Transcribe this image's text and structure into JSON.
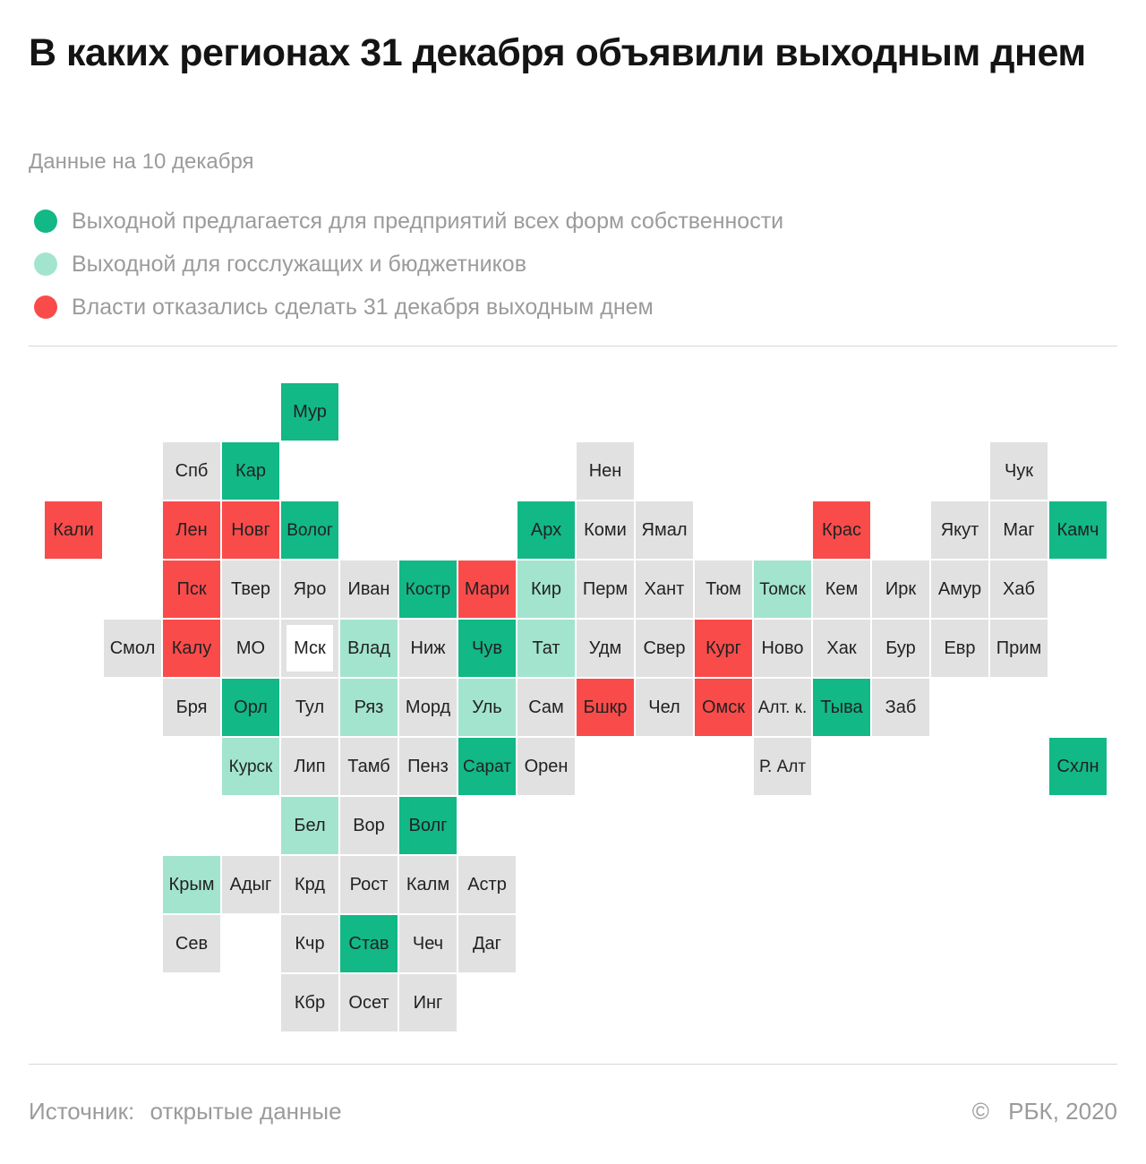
{
  "title": "В каких регионах 31 декабря объявили выходным днем",
  "subtitle": "Данные на 10 декабря",
  "colors": {
    "all_forms": "#12b886",
    "public_sector": "#a3e4cf",
    "refused": "#fa4b4b",
    "no_data": "#e1e1e1",
    "capital_border": "#e1e1e1"
  },
  "legend": [
    {
      "status": "all_forms",
      "label": "Выходной предлагается для предприятий всех форм собственности"
    },
    {
      "status": "public_sector",
      "label": "Выходной для госслужащих и бюджетников"
    },
    {
      "status": "refused",
      "label": "Власти отказались сделать 31 декабря выходным днем"
    }
  ],
  "regions": [
    {
      "label": "Мур",
      "status": "all_forms"
    },
    {
      "label": "Спб",
      "status": "no_data"
    },
    {
      "label": "Кар",
      "status": "all_forms"
    },
    {
      "label": "Нен",
      "status": "no_data"
    },
    {
      "label": "Чук",
      "status": "no_data"
    },
    {
      "label": "Кали",
      "status": "refused"
    },
    {
      "label": "Лен",
      "status": "refused"
    },
    {
      "label": "Новг",
      "status": "refused"
    },
    {
      "label": "Волог",
      "status": "all_forms"
    },
    {
      "label": "Арх",
      "status": "all_forms"
    },
    {
      "label": "Коми",
      "status": "no_data"
    },
    {
      "label": "Ямал",
      "status": "no_data"
    },
    {
      "label": "Крас",
      "status": "refused"
    },
    {
      "label": "Якут",
      "status": "no_data"
    },
    {
      "label": "Маг",
      "status": "no_data"
    },
    {
      "label": "Камч",
      "status": "all_forms"
    },
    {
      "label": "Пск",
      "status": "refused"
    },
    {
      "label": "Твер",
      "status": "no_data"
    },
    {
      "label": "Яро",
      "status": "no_data"
    },
    {
      "label": "Иван",
      "status": "no_data"
    },
    {
      "label": "Костр",
      "status": "all_forms"
    },
    {
      "label": "Мари",
      "status": "refused"
    },
    {
      "label": "Кир",
      "status": "public_sector"
    },
    {
      "label": "Перм",
      "status": "no_data"
    },
    {
      "label": "Хант",
      "status": "no_data"
    },
    {
      "label": "Тюм",
      "status": "no_data"
    },
    {
      "label": "Томск",
      "status": "public_sector"
    },
    {
      "label": "Кем",
      "status": "no_data"
    },
    {
      "label": "Ирк",
      "status": "no_data"
    },
    {
      "label": "Амур",
      "status": "no_data"
    },
    {
      "label": "Хаб",
      "status": "no_data"
    },
    {
      "label": "Смол",
      "status": "no_data"
    },
    {
      "label": "Калу",
      "status": "refused"
    },
    {
      "label": "МО",
      "status": "no_data"
    },
    {
      "label": "Мск",
      "status": "capital"
    },
    {
      "label": "Влад",
      "status": "public_sector"
    },
    {
      "label": "Ниж",
      "status": "no_data"
    },
    {
      "label": "Чув",
      "status": "all_forms"
    },
    {
      "label": "Тат",
      "status": "public_sector"
    },
    {
      "label": "Удм",
      "status": "no_data"
    },
    {
      "label": "Свер",
      "status": "no_data"
    },
    {
      "label": "Кург",
      "status": "refused"
    },
    {
      "label": "Ново",
      "status": "no_data"
    },
    {
      "label": "Хак",
      "status": "no_data"
    },
    {
      "label": "Бур",
      "status": "no_data"
    },
    {
      "label": "Евр",
      "status": "no_data"
    },
    {
      "label": "Прим",
      "status": "no_data"
    },
    {
      "label": "Бря",
      "status": "no_data"
    },
    {
      "label": "Орл",
      "status": "all_forms"
    },
    {
      "label": "Тул",
      "status": "no_data"
    },
    {
      "label": "Ряз",
      "status": "public_sector"
    },
    {
      "label": "Морд",
      "status": "no_data"
    },
    {
      "label": "Уль",
      "status": "public_sector"
    },
    {
      "label": "Сам",
      "status": "no_data"
    },
    {
      "label": "Бшкр",
      "status": "refused"
    },
    {
      "label": "Чел",
      "status": "no_data"
    },
    {
      "label": "Омск",
      "status": "refused"
    },
    {
      "label": "Алт. к.",
      "status": "no_data"
    },
    {
      "label": "Тыва",
      "status": "all_forms"
    },
    {
      "label": "Заб",
      "status": "no_data"
    },
    {
      "label": "Курск",
      "status": "public_sector"
    },
    {
      "label": "Лип",
      "status": "no_data"
    },
    {
      "label": "Тамб",
      "status": "no_data"
    },
    {
      "label": "Пенз",
      "status": "no_data"
    },
    {
      "label": "Сарат",
      "status": "all_forms"
    },
    {
      "label": "Орен",
      "status": "no_data"
    },
    {
      "label": "Р. Алт",
      "status": "no_data"
    },
    {
      "label": "Схлн",
      "status": "all_forms"
    },
    {
      "label": "Бел",
      "status": "public_sector"
    },
    {
      "label": "Вор",
      "status": "no_data"
    },
    {
      "label": "Волг",
      "status": "all_forms"
    },
    {
      "label": "Крым",
      "status": "public_sector"
    },
    {
      "label": "Адыг",
      "status": "no_data"
    },
    {
      "label": "Крд",
      "status": "no_data"
    },
    {
      "label": "Рост",
      "status": "no_data"
    },
    {
      "label": "Калм",
      "status": "no_data"
    },
    {
      "label": "Астр",
      "status": "no_data"
    },
    {
      "label": "Сев",
      "status": "no_data"
    },
    {
      "label": "Кчр",
      "status": "no_data"
    },
    {
      "label": "Став",
      "status": "all_forms"
    },
    {
      "label": "Чеч",
      "status": "no_data"
    },
    {
      "label": "Даг",
      "status": "no_data"
    },
    {
      "label": "Кбр",
      "status": "no_data"
    },
    {
      "label": "Осет",
      "status": "no_data"
    },
    {
      "label": "Инг",
      "status": "no_data"
    }
  ],
  "footer": {
    "source_label": "Источник:",
    "source_value": "открытые данные",
    "copyright_symbol": "©",
    "copyright_text": "РБК, 2020"
  }
}
